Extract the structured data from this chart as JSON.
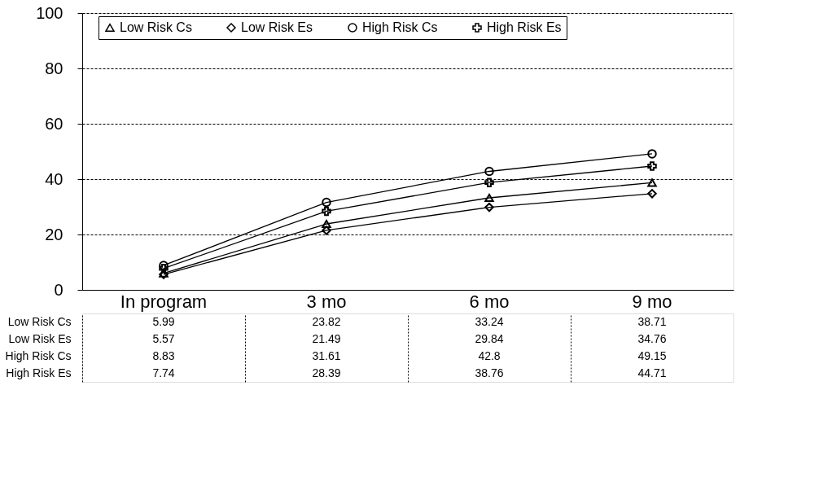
{
  "chart_data": {
    "type": "line",
    "categories": [
      "In program",
      "3 mo",
      "6 mo",
      "9 mo"
    ],
    "series": [
      {
        "name": "Low Risk Cs",
        "color": "#000000",
        "marker": "triangle",
        "values": [
          5.99,
          23.82,
          33.24,
          38.71
        ]
      },
      {
        "name": "Low Risk Es",
        "color": "#000000",
        "marker": "diamond",
        "values": [
          5.57,
          21.49,
          29.84,
          34.76
        ]
      },
      {
        "name": "High Risk Cs",
        "color": "#000000",
        "marker": "circle",
        "values": [
          8.83,
          31.61,
          42.8,
          49.15
        ]
      },
      {
        "name": "High Risk Es",
        "color": "#000000",
        "marker": "cross",
        "values": [
          7.74,
          28.39,
          38.76,
          44.71
        ]
      }
    ],
    "ylim": [
      0,
      100
    ],
    "yticks": [
      0,
      20,
      40,
      60,
      80,
      100
    ],
    "grid": "y",
    "legend": "top",
    "line_style": "solid",
    "data_labels": true
  }
}
